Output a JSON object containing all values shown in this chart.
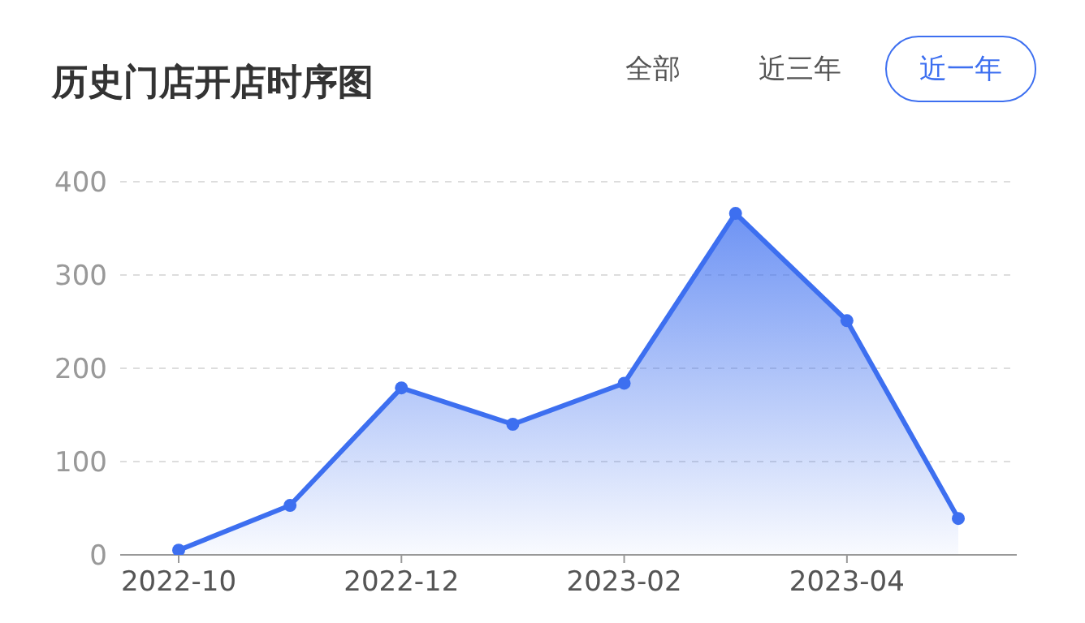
{
  "chart_data": {
    "type": "area",
    "title": "历史门店开店时序图",
    "annotations": [
      "全部",
      "近三年",
      "近一年"
    ],
    "categories": [
      "2022-10",
      null,
      "2022-12",
      null,
      "2023-02",
      null,
      "2023-04",
      null
    ],
    "series": [
      {
        "color": "#3d6ff0",
        "values": [
          5,
          53,
          179,
          140,
          184,
          366,
          251,
          39
        ]
      }
    ],
    "ylim": [
      0,
      400
    ],
    "yticks": [
      0,
      100,
      200,
      300,
      400
    ],
    "grid": "y",
    "marker": "circle",
    "legend": false
  }
}
